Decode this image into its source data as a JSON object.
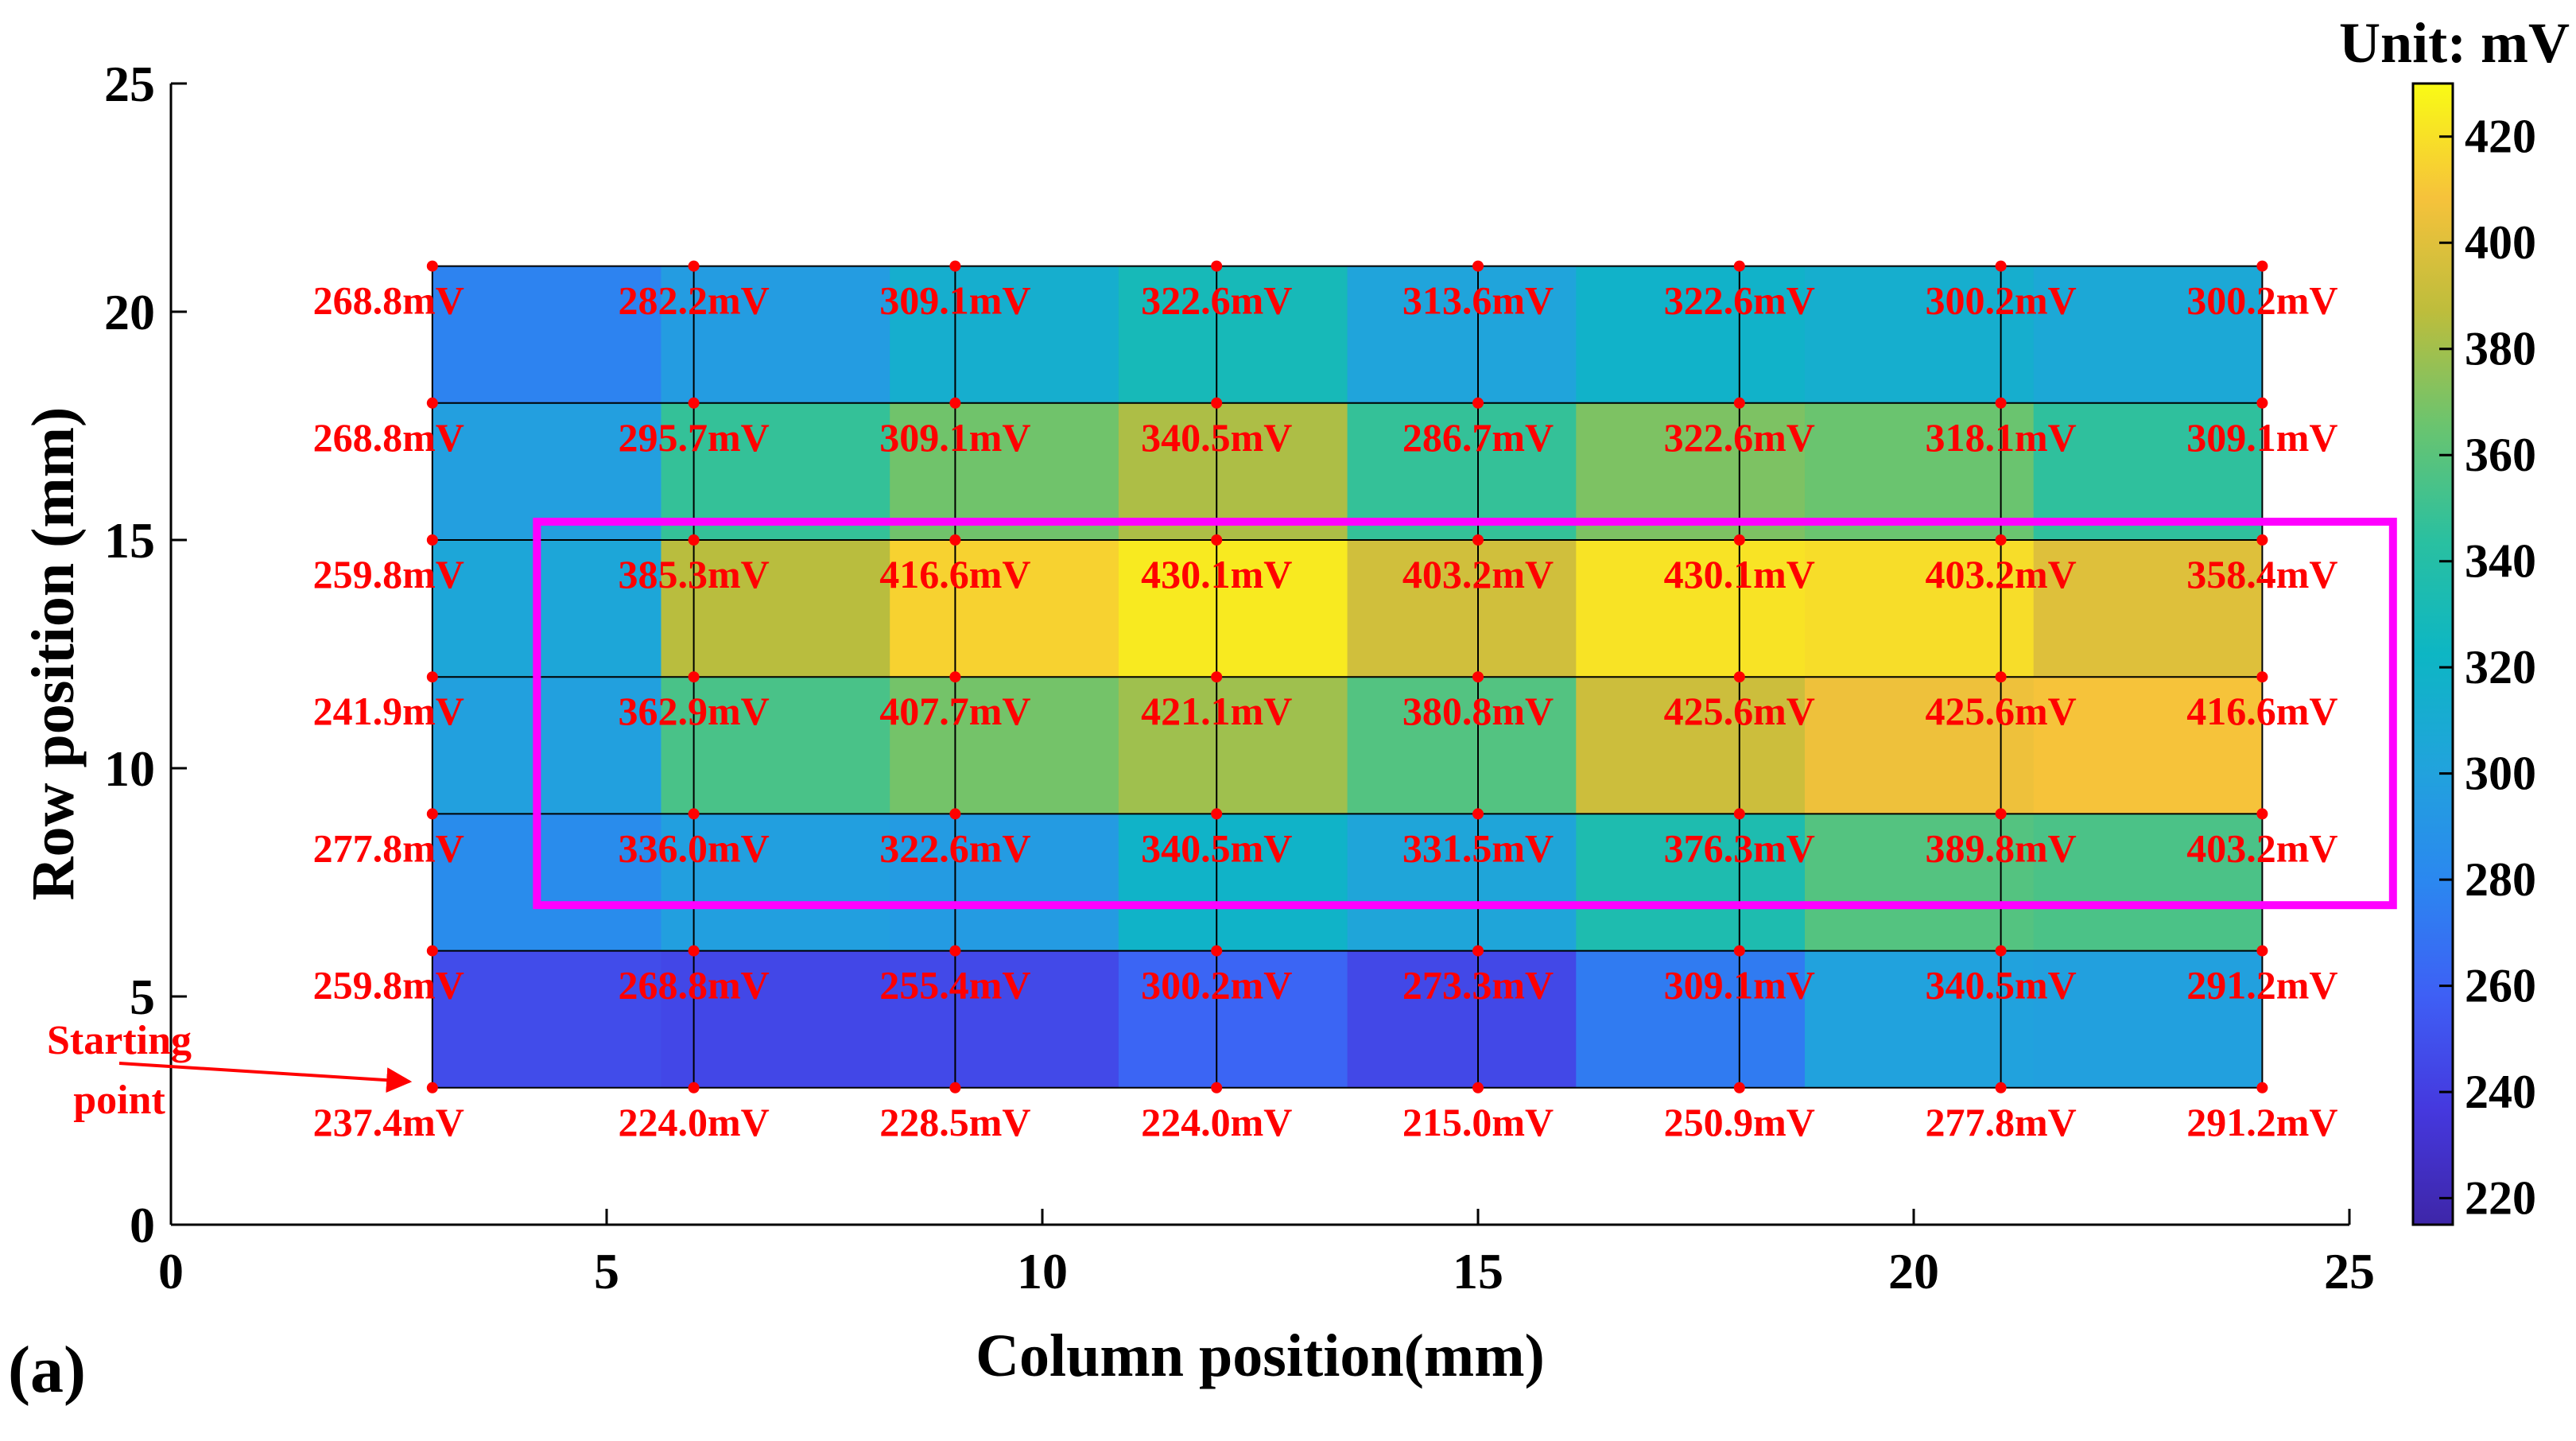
{
  "chart_data": {
    "type": "heatmap",
    "xlabel": "Column position(mm)",
    "ylabel": "Row position (mm)",
    "xlim": [
      0,
      25
    ],
    "ylim": [
      0,
      25
    ],
    "xticks": [
      0,
      5,
      10,
      15,
      20,
      25
    ],
    "yticks": [
      0,
      5,
      10,
      15,
      20,
      25
    ],
    "panel_label": "(a)",
    "colorbar": {
      "title": "Unit: mV",
      "range": [
        215,
        430
      ],
      "ticks": [
        220,
        240,
        260,
        280,
        300,
        320,
        340,
        360,
        380,
        400,
        420
      ]
    },
    "grid_columns": [
      3,
      6,
      9,
      12,
      15,
      18,
      21,
      24
    ],
    "grid_rows": [
      3,
      6,
      9,
      12,
      15,
      18,
      21
    ],
    "measurements": [
      {
        "row": 21,
        "values": [
          268.8,
          282.2,
          309.1,
          322.6,
          313.6,
          322.6,
          300.2,
          300.2
        ],
        "labels": [
          "268.8mV",
          "282.2mV",
          "309.1mV",
          "322.6mV",
          "313.6mV",
          "322.6mV",
          "300.2mV",
          "300.2mV"
        ]
      },
      {
        "row": 18,
        "values": [
          268.8,
          295.7,
          309.1,
          340.5,
          286.7,
          322.6,
          318.1,
          309.1
        ],
        "labels": [
          "268.8mV",
          "295.7mV",
          "309.1mV",
          "340.5mV",
          "286.7mV",
          "322.6mV",
          "318.1mV",
          "309.1mV"
        ]
      },
      {
        "row": 15,
        "values": [
          259.8,
          385.3,
          416.6,
          430.1,
          403.2,
          430.1,
          403.2,
          358.4
        ],
        "labels": [
          "259.8mV",
          "385.3mV",
          "416.6mV",
          "430.1mV",
          "403.2mV",
          "430.1mV",
          "403.2mV",
          "358.4mV"
        ]
      },
      {
        "row": 12,
        "values": [
          241.9,
          362.9,
          407.7,
          421.1,
          380.8,
          425.6,
          425.6,
          416.6
        ],
        "labels": [
          "241.9mV",
          "362.9mV",
          "407.7mV",
          "421.1mV",
          "380.8mV",
          "425.6mV",
          "425.6mV",
          "416.6mV"
        ]
      },
      {
        "row": 9,
        "values": [
          277.8,
          336.0,
          322.6,
          340.5,
          331.5,
          376.3,
          389.8,
          403.2
        ],
        "labels": [
          "277.8mV",
          "336.0mV",
          "322.6mV",
          "340.5mV",
          "331.5mV",
          "376.3mV",
          "389.8mV",
          "403.2mV"
        ]
      },
      {
        "row": 6,
        "values": [
          259.8,
          268.8,
          255.4,
          300.2,
          273.3,
          309.1,
          340.5,
          291.2
        ],
        "labels": [
          "259.8mV",
          "268.8mV",
          "255.4mV",
          "300.2mV",
          "273.3mV",
          "309.1mV",
          "340.5mV",
          "291.2mV"
        ]
      },
      {
        "row": 3,
        "values": [
          237.4,
          224.0,
          228.5,
          224.0,
          215.0,
          250.9,
          277.8,
          291.2
        ],
        "labels": [
          "237.4mV",
          "224.0mV",
          "228.5mV",
          "224.0mV",
          "215.0mV",
          "250.9mV",
          "277.8mV",
          "291.2mV"
        ]
      }
    ],
    "highlight_region": {
      "x_range": [
        4.2,
        25.5
      ],
      "y_range": [
        7,
        15.4
      ],
      "color": "#ff00ff"
    },
    "annotation": {
      "text_line1": "Starting",
      "text_line2": "point",
      "target": [
        3,
        3
      ],
      "color": "#ff0000"
    }
  }
}
